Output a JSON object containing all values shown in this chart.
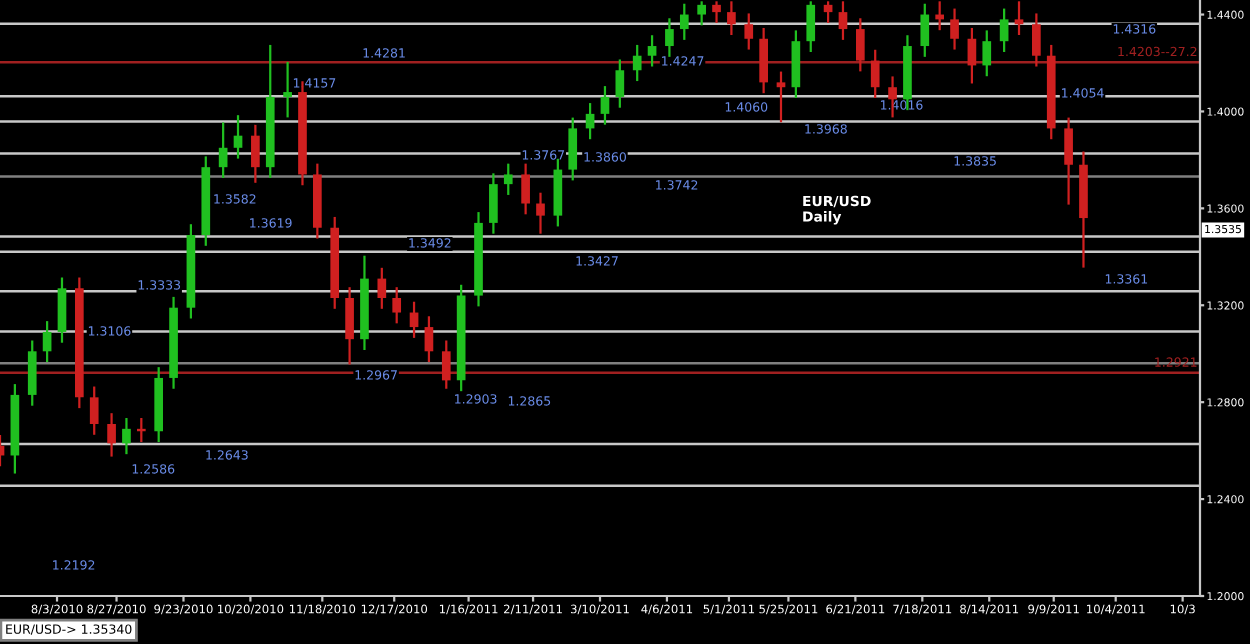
{
  "chart_data": {
    "type": "candlestick",
    "x": [
      "2010-07-11",
      "2010-07-17",
      "2010-07-24",
      "2010-07-30",
      "2010-08-05",
      "2010-08-12",
      "2010-08-18",
      "2010-08-25",
      "2010-08-31",
      "2010-09-06",
      "2010-09-13",
      "2010-09-19",
      "2010-09-26",
      "2010-10-02",
      "2010-10-09",
      "2010-10-15",
      "2010-10-22",
      "2010-10-28",
      "2010-11-04",
      "2010-11-10",
      "2010-11-16",
      "2010-11-23",
      "2010-11-29",
      "2010-12-05",
      "2010-12-12",
      "2010-12-18",
      "2010-12-25",
      "2010-12-31",
      "2011-01-07",
      "2011-01-13",
      "2011-01-20",
      "2011-01-26",
      "2011-02-01",
      "2011-02-08",
      "2011-02-14",
      "2011-02-21",
      "2011-02-27",
      "2011-03-06",
      "2011-03-12",
      "2011-03-18",
      "2011-03-25",
      "2011-03-31",
      "2011-04-07",
      "2011-04-13",
      "2011-04-20",
      "2011-04-26",
      "2011-05-02",
      "2011-05-09",
      "2011-05-15",
      "2011-05-22",
      "2011-05-28",
      "2011-06-03",
      "2011-06-10",
      "2011-06-16",
      "2011-06-23",
      "2011-06-29",
      "2011-07-06",
      "2011-07-12",
      "2011-07-19",
      "2011-07-25",
      "2011-07-31",
      "2011-08-07",
      "2011-08-13",
      "2011-08-20",
      "2011-08-26",
      "2011-09-02",
      "2011-09-08",
      "2011-09-15",
      "2011-09-21"
    ],
    "ohlc": [
      [
        1.262,
        1.266,
        1.254,
        1.258
      ],
      [
        1.258,
        1.287,
        1.251,
        1.283
      ],
      [
        1.283,
        1.305,
        1.279,
        1.301
      ],
      [
        1.301,
        1.313,
        1.297,
        1.309
      ],
      [
        1.309,
        1.331,
        1.305,
        1.327
      ],
      [
        1.327,
        1.331,
        1.278,
        1.282
      ],
      [
        1.282,
        1.286,
        1.267,
        1.271
      ],
      [
        1.271,
        1.275,
        1.258,
        1.263
      ],
      [
        1.263,
        1.273,
        1.259,
        1.269
      ],
      [
        1.269,
        1.273,
        1.264,
        1.268
      ],
      [
        1.268,
        1.294,
        1.264,
        1.29
      ],
      [
        1.29,
        1.323,
        1.286,
        1.319
      ],
      [
        1.319,
        1.353,
        1.315,
        1.349
      ],
      [
        1.349,
        1.381,
        1.345,
        1.377
      ],
      [
        1.377,
        1.395,
        1.373,
        1.385
      ],
      [
        1.385,
        1.398,
        1.381,
        1.39
      ],
      [
        1.39,
        1.394,
        1.371,
        1.377
      ],
      [
        1.377,
        1.427,
        1.373,
        1.406
      ],
      [
        1.406,
        1.42,
        1.398,
        1.408
      ],
      [
        1.408,
        1.412,
        1.37,
        1.374
      ],
      [
        1.374,
        1.378,
        1.348,
        1.352
      ],
      [
        1.352,
        1.356,
        1.319,
        1.323
      ],
      [
        1.323,
        1.327,
        1.296,
        1.306
      ],
      [
        1.306,
        1.34,
        1.302,
        1.331
      ],
      [
        1.331,
        1.335,
        1.319,
        1.323
      ],
      [
        1.323,
        1.327,
        1.313,
        1.317
      ],
      [
        1.317,
        1.321,
        1.307,
        1.311
      ],
      [
        1.311,
        1.315,
        1.297,
        1.301
      ],
      [
        1.301,
        1.305,
        1.286,
        1.289
      ],
      [
        1.289,
        1.328,
        1.285,
        1.324
      ],
      [
        1.324,
        1.358,
        1.32,
        1.354
      ],
      [
        1.354,
        1.374,
        1.35,
        1.37
      ],
      [
        1.37,
        1.378,
        1.366,
        1.374
      ],
      [
        1.374,
        1.378,
        1.358,
        1.362
      ],
      [
        1.362,
        1.366,
        1.35,
        1.357
      ],
      [
        1.357,
        1.38,
        1.353,
        1.376
      ],
      [
        1.376,
        1.397,
        1.372,
        1.393
      ],
      [
        1.393,
        1.403,
        1.389,
        1.399
      ],
      [
        1.399,
        1.41,
        1.395,
        1.406
      ],
      [
        1.406,
        1.421,
        1.402,
        1.417
      ],
      [
        1.417,
        1.427,
        1.413,
        1.423
      ],
      [
        1.423,
        1.431,
        1.419,
        1.427
      ],
      [
        1.427,
        1.438,
        1.423,
        1.434
      ],
      [
        1.434,
        1.444,
        1.43,
        1.44
      ],
      [
        1.44,
        1.445,
        1.436,
        1.444
      ],
      [
        1.444,
        1.445,
        1.437,
        1.441
      ],
      [
        1.441,
        1.445,
        1.432,
        1.436
      ],
      [
        1.436,
        1.44,
        1.426,
        1.43
      ],
      [
        1.43,
        1.434,
        1.408,
        1.412
      ],
      [
        1.412,
        1.416,
        1.396,
        1.41
      ],
      [
        1.41,
        1.433,
        1.406,
        1.429
      ],
      [
        1.429,
        1.445,
        1.425,
        1.444
      ],
      [
        1.444,
        1.445,
        1.437,
        1.441
      ],
      [
        1.441,
        1.445,
        1.43,
        1.434
      ],
      [
        1.434,
        1.438,
        1.417,
        1.421
      ],
      [
        1.421,
        1.425,
        1.406,
        1.41
      ],
      [
        1.41,
        1.414,
        1.398,
        1.405
      ],
      [
        1.405,
        1.431,
        1.401,
        1.427
      ],
      [
        1.427,
        1.444,
        1.423,
        1.44
      ],
      [
        1.44,
        1.445,
        1.434,
        1.438
      ],
      [
        1.438,
        1.442,
        1.426,
        1.43
      ],
      [
        1.43,
        1.434,
        1.412,
        1.419
      ],
      [
        1.419,
        1.433,
        1.415,
        1.429
      ],
      [
        1.429,
        1.442,
        1.425,
        1.438
      ],
      [
        1.438,
        1.445,
        1.432,
        1.436
      ],
      [
        1.436,
        1.44,
        1.419,
        1.423
      ],
      [
        1.423,
        1.427,
        1.389,
        1.393
      ],
      [
        1.393,
        1.397,
        1.362,
        1.378
      ],
      [
        1.378,
        1.383,
        1.336,
        1.356
      ]
    ],
    "colors": [
      "#d02020",
      "#20c020",
      "#20c020",
      "#20c020",
      "#20c020",
      "#d02020",
      "#d02020",
      "#d02020",
      "#20c020",
      "#d02020",
      "#20c020",
      "#20c020",
      "#20c020",
      "#20c020",
      "#20c020",
      "#20c020",
      "#d02020",
      "#20c020",
      "#20c020",
      "#d02020",
      "#d02020",
      "#d02020",
      "#d02020",
      "#20c020",
      "#d02020",
      "#d02020",
      "#d02020",
      "#d02020",
      "#d02020",
      "#20c020",
      "#20c020",
      "#20c020",
      "#20c020",
      "#d02020",
      "#d02020",
      "#20c020",
      "#20c020",
      "#20c020",
      "#20c020",
      "#20c020",
      "#20c020",
      "#20c020",
      "#20c020",
      "#20c020",
      "#20c020",
      "#d02020",
      "#d02020",
      "#d02020",
      "#d02020",
      "#d02020",
      "#20c020",
      "#20c020",
      "#d02020",
      "#d02020",
      "#d02020",
      "#d02020",
      "#d02020",
      "#20c020",
      "#20c020",
      "#d02020",
      "#d02020",
      "#d02020",
      "#20c020",
      "#20c020",
      "#d02020",
      "#d02020",
      "#d02020",
      "#d02020",
      "#d02020"
    ],
    "xlim": [
      "2010-07-11",
      "2011-11-07"
    ],
    "xticks": [
      {
        "value": "2010-08-03",
        "label": "8/3/2010"
      },
      {
        "value": "2010-08-27",
        "label": "8/27/2010"
      },
      {
        "value": "2010-09-23",
        "label": "9/23/2010"
      },
      {
        "value": "2010-10-20",
        "label": "10/20/2010"
      },
      {
        "value": "2010-11-18",
        "label": "11/18/2010"
      },
      {
        "value": "2010-12-17",
        "label": "12/17/2010"
      },
      {
        "value": "2011-01-16",
        "label": "1/16/2011"
      },
      {
        "value": "2011-02-11",
        "label": "2/11/2011"
      },
      {
        "value": "2011-03-10",
        "label": "3/10/2011"
      },
      {
        "value": "2011-04-06",
        "label": "4/6/2011"
      },
      {
        "value": "2011-05-01",
        "label": "5/1/2011"
      },
      {
        "value": "2011-05-25",
        "label": "5/25/2011"
      },
      {
        "value": "2011-06-21",
        "label": "6/21/2011"
      },
      {
        "value": "2011-07-18",
        "label": "7/18/2011"
      },
      {
        "value": "2011-08-14",
        "label": "8/14/2011"
      },
      {
        "value": "2011-09-09",
        "label": "9/9/2011"
      },
      {
        "value": "2011-10-04",
        "label": "10/4/2011"
      },
      {
        "value": "2011-10-31",
        "label": "10/3"
      }
    ],
    "ylim": [
      1.2,
      1.446
    ],
    "yticks": [
      {
        "value": 1.2,
        "label": "1.2000"
      },
      {
        "value": 1.24,
        "label": "1.2400"
      },
      {
        "value": 1.28,
        "label": "1.2800"
      },
      {
        "value": 1.32,
        "label": "1.3200"
      },
      {
        "value": 1.36,
        "label": "1.3600"
      },
      {
        "value": 1.4,
        "label": "1.4000"
      },
      {
        "value": 1.44,
        "label": "1.4400"
      }
    ],
    "grid": false,
    "ref_lines": [
      {
        "axis": "y",
        "value": 1.4362,
        "color": "#c8c8c8"
      },
      {
        "axis": "y",
        "value": 1.4203,
        "color": "#a02020",
        "label": "1.4203--27.2"
      },
      {
        "axis": "y",
        "value": 1.4063,
        "color": "#c8c8c8"
      },
      {
        "axis": "y",
        "value": 1.3959,
        "color": "#c8c8c8"
      },
      {
        "axis": "y",
        "value": 1.3826,
        "color": "#c8c8c8"
      },
      {
        "axis": "y",
        "value": 1.3731,
        "color": "#808080"
      },
      {
        "axis": "y",
        "value": 1.3484,
        "color": "#c8c8c8"
      },
      {
        "axis": "y",
        "value": 1.3421,
        "color": "#c8c8c8"
      },
      {
        "axis": "y",
        "value": 1.3258,
        "color": "#c8c8c8"
      },
      {
        "axis": "y",
        "value": 1.3092,
        "color": "#c8c8c8"
      },
      {
        "axis": "y",
        "value": 1.2961,
        "color": "#808080"
      },
      {
        "axis": "y",
        "value": 1.2921,
        "color": "#a02020",
        "label": "1.2921"
      },
      {
        "axis": "y",
        "value": 1.2627,
        "color": "#c8c8c8"
      },
      {
        "axis": "y",
        "value": 1.2455,
        "color": "#c8c8c8"
      }
    ],
    "annotations": [
      "1.4281",
      "1.4157",
      "1.3582",
      "1.3619",
      "1.3333",
      "1.3106",
      "1.2586",
      "1.2643",
      "1.2192",
      "1.2967",
      "1.2903",
      "1.2865",
      "1.3492",
      "1.3767",
      "1.3427",
      "1.3860",
      "1.4247",
      "1.3742",
      "1.4060",
      "1.3968",
      "1.4016",
      "1.3835",
      "1.4054",
      "1.4316",
      "1.3361",
      "EUR/USD\nDaily",
      "1.3535",
      "EUR/USD-> 1.35340"
    ]
  }
}
